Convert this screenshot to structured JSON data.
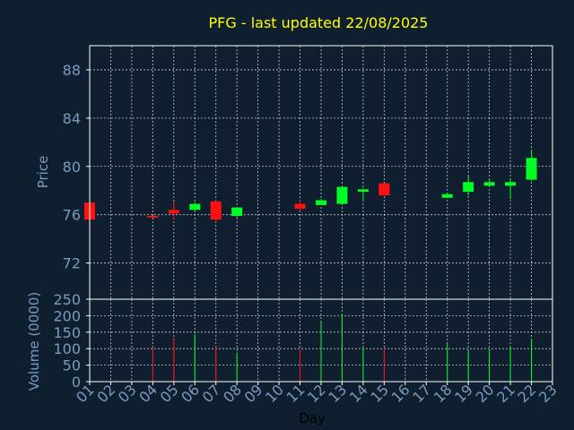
{
  "chart_data": [
    {
      "type": "candlestick",
      "title": "PFG - last updated 22/08/2025",
      "ylabel": "Price",
      "ylim": [
        69,
        90
      ],
      "yticks": [
        "72",
        "76",
        "80",
        "84",
        "88"
      ],
      "ytick_values": [
        72,
        76,
        80,
        84,
        88
      ],
      "grid": true,
      "colors": {
        "up": "#00ff22",
        "down": "#ff1111",
        "grid": "#ffffff",
        "axis": "#ffffff",
        "background": "#0f1f2f"
      },
      "candles": [
        {
          "day": 1,
          "open": 77.0,
          "high": 77.0,
          "low": 75.5,
          "close": 75.6
        },
        {
          "day": 4,
          "open": 75.9,
          "high": 75.9,
          "low": 75.7,
          "close": 75.8
        },
        {
          "day": 5,
          "open": 76.4,
          "high": 77.1,
          "low": 75.6,
          "close": 76.1
        },
        {
          "day": 6,
          "open": 76.4,
          "high": 77.0,
          "low": 76.3,
          "close": 76.9
        },
        {
          "day": 7,
          "open": 77.1,
          "high": 77.2,
          "low": 75.4,
          "close": 75.6
        },
        {
          "day": 8,
          "open": 75.9,
          "high": 76.6,
          "low": 75.8,
          "close": 76.6
        },
        {
          "day": 11,
          "open": 76.9,
          "high": 77.2,
          "low": 76.3,
          "close": 76.5
        },
        {
          "day": 12,
          "open": 76.8,
          "high": 77.3,
          "low": 76.8,
          "close": 77.2
        },
        {
          "day": 13,
          "open": 76.9,
          "high": 78.4,
          "low": 76.9,
          "close": 78.3
        },
        {
          "day": 14,
          "open": 77.9,
          "high": 78.2,
          "low": 77.1,
          "close": 78.1
        },
        {
          "day": 15,
          "open": 78.6,
          "high": 78.6,
          "low": 77.6,
          "close": 77.6
        },
        {
          "day": 18,
          "open": 77.4,
          "high": 77.8,
          "low": 77.4,
          "close": 77.7
        },
        {
          "day": 19,
          "open": 77.9,
          "high": 79.2,
          "low": 77.6,
          "close": 78.7
        },
        {
          "day": 20,
          "open": 78.4,
          "high": 79.0,
          "low": 78.3,
          "close": 78.7
        },
        {
          "day": 21,
          "open": 78.4,
          "high": 79.0,
          "low": 77.3,
          "close": 78.7
        },
        {
          "day": 22,
          "open": 78.9,
          "high": 81.4,
          "low": 78.8,
          "close": 80.7
        }
      ]
    },
    {
      "type": "bar",
      "ylabel": "Volume (0000)",
      "xlabel": "Day",
      "ylim": [
        0,
        250
      ],
      "yticks": [
        "0",
        "50",
        "100",
        "150",
        "200",
        "250"
      ],
      "ytick_values": [
        0,
        50,
        100,
        150,
        200,
        250
      ],
      "grid": true,
      "categories": [
        "01",
        "02",
        "03",
        "04",
        "05",
        "06",
        "07",
        "08",
        "09",
        "10",
        "11",
        "12",
        "13",
        "14",
        "15",
        "16",
        "17",
        "18",
        "19",
        "20",
        "21",
        "22",
        "23"
      ],
      "bars": [
        {
          "day": 1,
          "value": 0,
          "direction": "down"
        },
        {
          "day": 4,
          "value": 105,
          "direction": "down"
        },
        {
          "day": 5,
          "value": 133,
          "direction": "down"
        },
        {
          "day": 6,
          "value": 145,
          "direction": "up"
        },
        {
          "day": 7,
          "value": 107,
          "direction": "down"
        },
        {
          "day": 8,
          "value": 88,
          "direction": "up"
        },
        {
          "day": 11,
          "value": 98,
          "direction": "down"
        },
        {
          "day": 12,
          "value": 180,
          "direction": "up"
        },
        {
          "day": 13,
          "value": 205,
          "direction": "up"
        },
        {
          "day": 14,
          "value": 103,
          "direction": "up"
        },
        {
          "day": 15,
          "value": 101,
          "direction": "down"
        },
        {
          "day": 18,
          "value": 115,
          "direction": "up"
        },
        {
          "day": 19,
          "value": 97,
          "direction": "up"
        },
        {
          "day": 20,
          "value": 98,
          "direction": "up"
        },
        {
          "day": 21,
          "value": 107,
          "direction": "up"
        },
        {
          "day": 22,
          "value": 130,
          "direction": "up"
        }
      ]
    }
  ]
}
